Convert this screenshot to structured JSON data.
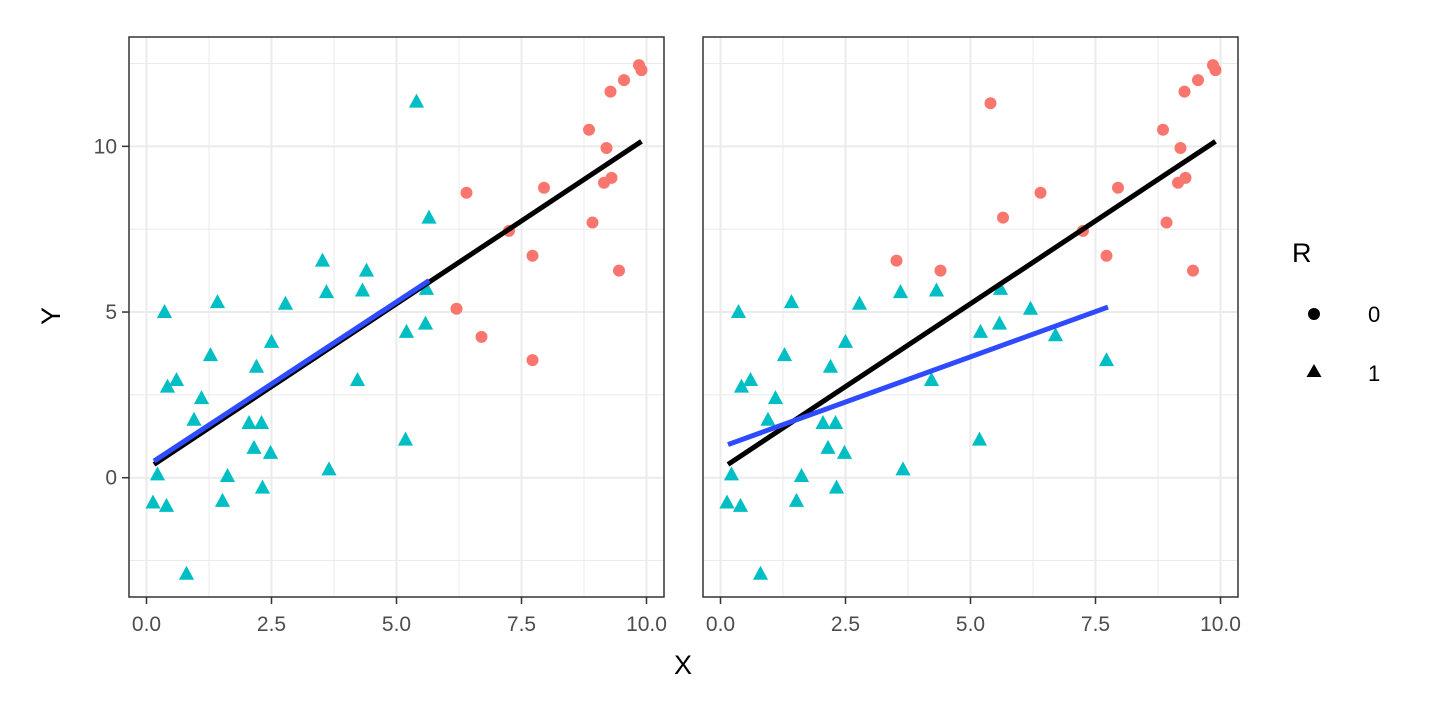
{
  "chart_data": {
    "type": "scatter",
    "xlabel": "X",
    "ylabel": "Y",
    "xlim": [
      -0.35,
      10.35
    ],
    "ylim": [
      -3.6,
      13.3
    ],
    "x_ticks": [
      0,
      2.5,
      5,
      7.5,
      10
    ],
    "x_tick_labels": [
      "0.0",
      "2.5",
      "5.0",
      "7.5",
      "10.0"
    ],
    "y_ticks": [
      0,
      5,
      10
    ],
    "y_tick_labels": [
      "0",
      "5",
      "10"
    ],
    "grid": true,
    "legend": {
      "title": "R",
      "position": "right",
      "entries": [
        {
          "label": "0",
          "shape": "circle",
          "color": "#F8766D"
        },
        {
          "label": "1",
          "shape": "triangle",
          "color": "#00BFC4"
        }
      ]
    },
    "panels": [
      {
        "points_R1": [
          [
            0.13,
            -0.75
          ],
          [
            0.22,
            0.1
          ],
          [
            0.36,
            5.0
          ],
          [
            0.42,
            2.75
          ],
          [
            0.4,
            -0.85
          ],
          [
            0.6,
            2.95
          ],
          [
            0.8,
            -2.9
          ],
          [
            0.95,
            1.75
          ],
          [
            1.1,
            2.4
          ],
          [
            1.28,
            3.7
          ],
          [
            1.42,
            5.3
          ],
          [
            1.52,
            -0.7
          ],
          [
            1.62,
            0.05
          ],
          [
            2.05,
            1.65
          ],
          [
            2.2,
            3.35
          ],
          [
            2.15,
            0.9
          ],
          [
            2.3,
            1.65
          ],
          [
            2.32,
            -0.3
          ],
          [
            2.48,
            0.75
          ],
          [
            2.5,
            4.1
          ],
          [
            2.78,
            5.25
          ],
          [
            3.52,
            6.55
          ],
          [
            3.6,
            5.6
          ],
          [
            3.65,
            0.25
          ],
          [
            4.22,
            2.95
          ],
          [
            4.32,
            5.65
          ],
          [
            4.4,
            6.25
          ],
          [
            5.18,
            1.15
          ],
          [
            5.2,
            4.4
          ],
          [
            5.4,
            11.35
          ],
          [
            5.58,
            4.65
          ],
          [
            5.65,
            7.85
          ],
          [
            5.6,
            5.7
          ]
        ],
        "points_R0": [
          [
            6.2,
            5.1
          ],
          [
            6.4,
            8.6
          ],
          [
            6.7,
            4.25
          ],
          [
            7.25,
            7.45
          ],
          [
            7.72,
            6.7
          ],
          [
            7.72,
            3.55
          ],
          [
            7.95,
            8.75
          ],
          [
            8.85,
            10.5
          ],
          [
            8.92,
            7.7
          ],
          [
            9.15,
            8.9
          ],
          [
            9.2,
            9.95
          ],
          [
            9.28,
            11.65
          ],
          [
            9.3,
            9.05
          ],
          [
            9.45,
            6.25
          ],
          [
            9.55,
            12.0
          ],
          [
            9.85,
            12.45
          ],
          [
            9.9,
            12.3
          ]
        ],
        "line_full": {
          "x": [
            0.15,
            9.9
          ],
          "y": [
            0.4,
            10.15
          ]
        },
        "line_subset": {
          "x": [
            0.15,
            5.65
          ],
          "y": [
            0.5,
            5.95
          ]
        }
      },
      {
        "points_R1": [
          [
            0.13,
            -0.75
          ],
          [
            0.22,
            0.1
          ],
          [
            0.36,
            5.0
          ],
          [
            0.42,
            2.75
          ],
          [
            0.4,
            -0.85
          ],
          [
            0.6,
            2.95
          ],
          [
            0.8,
            -2.9
          ],
          [
            0.95,
            1.75
          ],
          [
            1.1,
            2.4
          ],
          [
            1.28,
            3.7
          ],
          [
            1.42,
            5.3
          ],
          [
            1.52,
            -0.7
          ],
          [
            1.62,
            0.05
          ],
          [
            2.05,
            1.65
          ],
          [
            2.2,
            3.35
          ],
          [
            2.15,
            0.9
          ],
          [
            2.3,
            1.65
          ],
          [
            2.32,
            -0.3
          ],
          [
            2.48,
            0.75
          ],
          [
            2.5,
            4.1
          ],
          [
            2.78,
            5.25
          ],
          [
            3.6,
            5.6
          ],
          [
            3.65,
            0.25
          ],
          [
            4.22,
            2.95
          ],
          [
            4.32,
            5.65
          ],
          [
            5.18,
            1.15
          ],
          [
            5.2,
            4.4
          ],
          [
            5.58,
            4.65
          ],
          [
            5.6,
            5.7
          ],
          [
            6.2,
            5.1
          ],
          [
            6.7,
            4.3
          ],
          [
            7.72,
            3.55
          ]
        ],
        "points_R0": [
          [
            3.52,
            6.55
          ],
          [
            4.4,
            6.25
          ],
          [
            5.4,
            11.3
          ],
          [
            5.65,
            7.85
          ],
          [
            6.4,
            8.6
          ],
          [
            7.25,
            7.45
          ],
          [
            7.72,
            6.7
          ],
          [
            7.95,
            8.75
          ],
          [
            8.85,
            10.5
          ],
          [
            8.92,
            7.7
          ],
          [
            9.15,
            8.9
          ],
          [
            9.2,
            9.95
          ],
          [
            9.28,
            11.65
          ],
          [
            9.3,
            9.05
          ],
          [
            9.45,
            6.25
          ],
          [
            9.55,
            12.0
          ],
          [
            9.85,
            12.45
          ],
          [
            9.9,
            12.3
          ]
        ],
        "line_full": {
          "x": [
            0.15,
            9.9
          ],
          "y": [
            0.4,
            10.15
          ]
        },
        "line_subset": {
          "x": [
            0.15,
            7.75
          ],
          "y": [
            1.0,
            5.15
          ]
        }
      }
    ],
    "colors": {
      "R0": "#F8766D",
      "R1": "#00BFC4",
      "line_full": "#000000",
      "line_subset": "#2E4BFF",
      "grid": "#EBEBEB",
      "panel_border": "#333333"
    }
  }
}
